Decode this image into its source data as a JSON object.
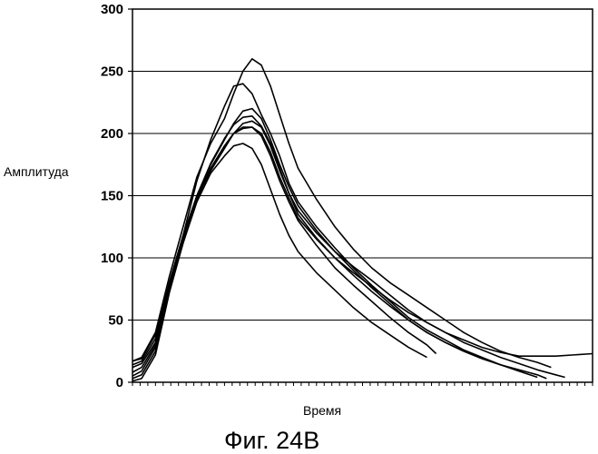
{
  "chart_data": {
    "type": "line",
    "title": "",
    "xlabel": "Время",
    "ylabel": "Амплитуда",
    "caption": "Фиг. 24В",
    "ylim": [
      0,
      300
    ],
    "yticks": [
      0,
      50,
      100,
      150,
      200,
      250,
      300
    ],
    "xlim": [
      0,
      100
    ],
    "grid": "horizontal",
    "series": [
      {
        "values": [
          [
            0,
            17
          ],
          [
            2,
            19
          ],
          [
            5,
            38
          ],
          [
            8,
            80
          ],
          [
            11,
            118
          ],
          [
            14,
            162
          ],
          [
            17,
            195
          ],
          [
            20,
            222
          ],
          [
            22,
            238
          ],
          [
            24,
            240
          ],
          [
            26,
            232
          ],
          [
            28,
            215
          ],
          [
            30,
            200
          ],
          [
            32,
            182
          ],
          [
            34,
            160
          ],
          [
            36,
            145
          ],
          [
            40,
            125
          ],
          [
            44,
            108
          ],
          [
            48,
            92
          ],
          [
            52,
            78
          ],
          [
            56,
            65
          ],
          [
            60,
            52
          ],
          [
            64,
            42
          ],
          [
            68,
            34
          ],
          [
            72,
            26
          ],
          [
            76,
            20
          ],
          [
            80,
            14
          ],
          [
            84,
            9
          ],
          [
            88,
            4
          ]
        ]
      },
      {
        "values": [
          [
            0,
            17
          ],
          [
            2,
            20
          ],
          [
            5,
            40
          ],
          [
            8,
            85
          ],
          [
            11,
            125
          ],
          [
            14,
            165
          ],
          [
            17,
            192
          ],
          [
            20,
            212
          ],
          [
            22,
            232
          ],
          [
            24,
            250
          ],
          [
            26,
            260
          ],
          [
            28,
            255
          ],
          [
            30,
            238
          ],
          [
            32,
            215
          ],
          [
            34,
            192
          ],
          [
            36,
            172
          ],
          [
            40,
            147
          ],
          [
            44,
            125
          ],
          [
            48,
            107
          ],
          [
            52,
            92
          ],
          [
            56,
            80
          ],
          [
            60,
            70
          ],
          [
            64,
            60
          ],
          [
            68,
            50
          ],
          [
            72,
            40
          ],
          [
            76,
            32
          ],
          [
            80,
            25
          ],
          [
            84,
            20
          ],
          [
            88,
            16
          ],
          [
            91,
            12
          ]
        ]
      },
      {
        "values": [
          [
            0,
            14
          ],
          [
            2,
            17
          ],
          [
            5,
            35
          ],
          [
            8,
            80
          ],
          [
            11,
            118
          ],
          [
            14,
            150
          ],
          [
            17,
            172
          ],
          [
            20,
            190
          ],
          [
            22,
            200
          ],
          [
            24,
            204
          ],
          [
            26,
            205
          ],
          [
            28,
            200
          ],
          [
            30,
            185
          ],
          [
            32,
            165
          ],
          [
            34,
            148
          ],
          [
            36,
            132
          ],
          [
            40,
            115
          ],
          [
            44,
            100
          ],
          [
            48,
            88
          ],
          [
            52,
            77
          ],
          [
            56,
            66
          ],
          [
            60,
            56
          ],
          [
            64,
            48
          ],
          [
            68,
            40
          ],
          [
            72,
            34
          ],
          [
            76,
            28
          ],
          [
            80,
            24
          ],
          [
            84,
            21
          ],
          [
            88,
            21
          ],
          [
            92,
            21
          ],
          [
            100,
            23
          ]
        ]
      },
      {
        "values": [
          [
            0,
            12
          ],
          [
            2,
            15
          ],
          [
            5,
            32
          ],
          [
            8,
            80
          ],
          [
            11,
            115
          ],
          [
            14,
            148
          ],
          [
            17,
            170
          ],
          [
            20,
            188
          ],
          [
            22,
            200
          ],
          [
            24,
            208
          ],
          [
            26,
            210
          ],
          [
            28,
            205
          ],
          [
            30,
            190
          ],
          [
            32,
            170
          ],
          [
            34,
            152
          ],
          [
            36,
            138
          ],
          [
            40,
            120
          ],
          [
            44,
            105
          ],
          [
            48,
            93
          ],
          [
            52,
            82
          ],
          [
            56,
            70
          ],
          [
            60,
            58
          ],
          [
            64,
            48
          ],
          [
            68,
            40
          ],
          [
            72,
            32
          ],
          [
            76,
            26
          ],
          [
            80,
            20
          ],
          [
            84,
            15
          ],
          [
            88,
            10
          ],
          [
            92,
            6
          ],
          [
            94,
            4
          ]
        ]
      },
      {
        "values": [
          [
            0,
            8
          ],
          [
            2,
            12
          ],
          [
            5,
            30
          ],
          [
            8,
            78
          ],
          [
            11,
            115
          ],
          [
            14,
            150
          ],
          [
            17,
            175
          ],
          [
            20,
            195
          ],
          [
            22,
            208
          ],
          [
            24,
            218
          ],
          [
            26,
            220
          ],
          [
            28,
            212
          ],
          [
            30,
            195
          ],
          [
            32,
            175
          ],
          [
            34,
            157
          ],
          [
            36,
            142
          ],
          [
            40,
            122
          ],
          [
            44,
            105
          ],
          [
            48,
            90
          ],
          [
            52,
            76
          ],
          [
            56,
            63
          ],
          [
            60,
            50
          ],
          [
            64,
            40
          ],
          [
            68,
            32
          ],
          [
            72,
            25
          ],
          [
            76,
            19
          ],
          [
            80,
            14
          ]
        ]
      },
      {
        "values": [
          [
            0,
            3
          ],
          [
            2,
            6
          ],
          [
            5,
            25
          ],
          [
            8,
            75
          ],
          [
            11,
            112
          ],
          [
            14,
            145
          ],
          [
            17,
            168
          ],
          [
            20,
            182
          ],
          [
            22,
            190
          ],
          [
            24,
            192
          ],
          [
            26,
            188
          ],
          [
            28,
            175
          ],
          [
            30,
            155
          ],
          [
            32,
            135
          ],
          [
            34,
            118
          ],
          [
            36,
            105
          ],
          [
            40,
            88
          ],
          [
            44,
            74
          ],
          [
            48,
            60
          ],
          [
            52,
            48
          ],
          [
            56,
            38
          ],
          [
            60,
            28
          ],
          [
            64,
            20
          ]
        ]
      },
      {
        "values": [
          [
            0,
            1
          ],
          [
            2,
            3
          ],
          [
            5,
            22
          ],
          [
            8,
            72
          ],
          [
            11,
            112
          ],
          [
            14,
            147
          ],
          [
            17,
            172
          ],
          [
            20,
            190
          ],
          [
            22,
            200
          ],
          [
            24,
            205
          ],
          [
            26,
            205
          ],
          [
            28,
            198
          ],
          [
            30,
            182
          ],
          [
            32,
            162
          ],
          [
            34,
            145
          ],
          [
            36,
            130
          ],
          [
            40,
            110
          ],
          [
            44,
            92
          ],
          [
            48,
            78
          ],
          [
            52,
            65
          ],
          [
            56,
            52
          ],
          [
            60,
            40
          ],
          [
            64,
            30
          ],
          [
            66,
            23
          ]
        ]
      },
      {
        "values": [
          [
            0,
            5
          ],
          [
            2,
            9
          ],
          [
            5,
            28
          ],
          [
            8,
            76
          ],
          [
            11,
            114
          ],
          [
            14,
            150
          ],
          [
            17,
            176
          ],
          [
            20,
            196
          ],
          [
            22,
            207
          ],
          [
            24,
            213
          ],
          [
            26,
            214
          ],
          [
            28,
            206
          ],
          [
            30,
            192
          ],
          [
            32,
            172
          ],
          [
            34,
            152
          ],
          [
            36,
            135
          ],
          [
            40,
            116
          ],
          [
            44,
            100
          ],
          [
            48,
            86
          ],
          [
            52,
            73
          ],
          [
            56,
            61
          ],
          [
            60,
            50
          ],
          [
            64,
            40
          ],
          [
            68,
            32
          ],
          [
            72,
            25
          ],
          [
            76,
            19
          ],
          [
            80,
            14
          ],
          [
            84,
            10
          ],
          [
            86,
            8
          ],
          [
            88,
            6
          ],
          [
            90,
            3
          ]
        ]
      }
    ]
  }
}
